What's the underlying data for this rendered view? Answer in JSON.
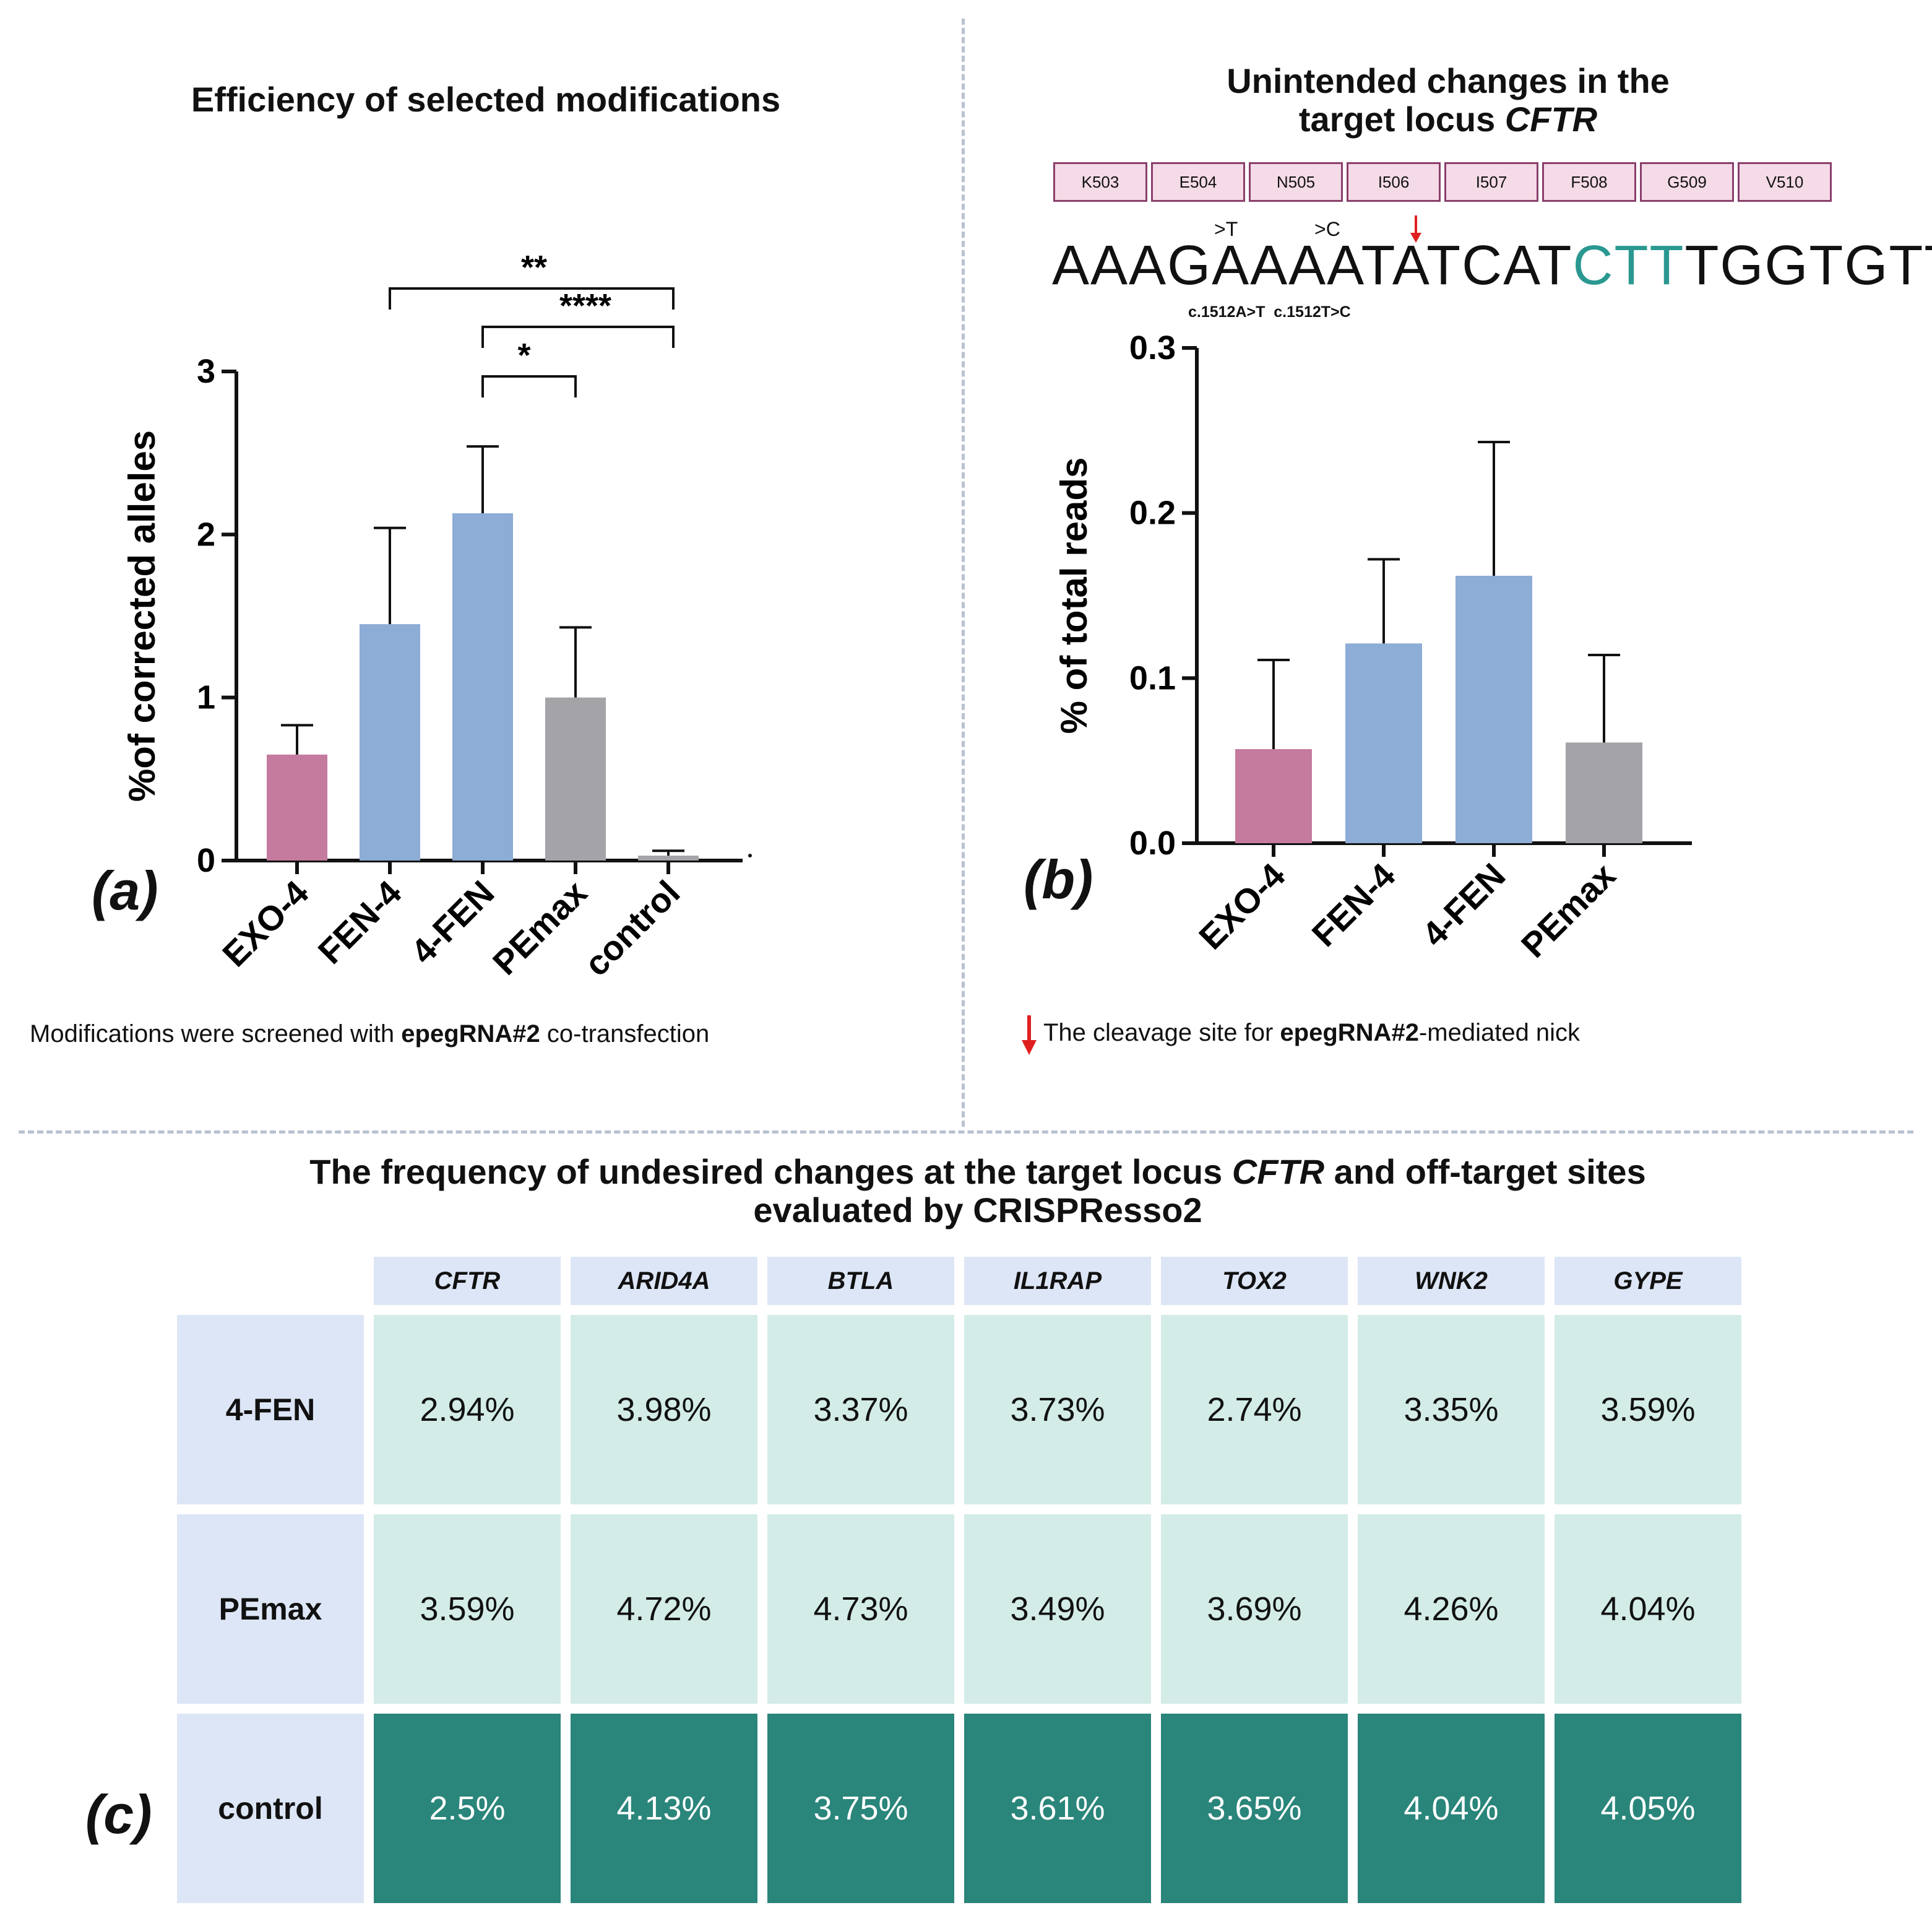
{
  "panel_a": {
    "label": "(a)",
    "title": "Efficiency of selected modifications",
    "caption_pre": "Modifications were screened with ",
    "caption_bold": "epegRNA#2",
    "caption_post": " co-transfection",
    "significance": [
      "**",
      "****",
      "*"
    ]
  },
  "panel_b": {
    "label": "(b)",
    "title_line1": "Unintended changes in the",
    "title_line2": "target locus ",
    "title_italic": "CFTR",
    "codons": [
      "K503",
      "E504",
      "N505",
      "I506",
      "I507",
      "F508",
      "G509",
      "V510"
    ],
    "seq_a": "AAAGAAAATATCAT",
    "seq_teal": "CTT",
    "seq_b": "TGGTGTT",
    "mut1": ">T",
    "mut2": ">C",
    "mut_labels": "c.1512A>T  c.1512T>C",
    "caption_pre": "The cleavage site for ",
    "caption_bold": "epegRNA#2",
    "caption_post": "-mediated nick"
  },
  "panel_c": {
    "label": "(c)",
    "title_pre": "The frequency of undesired changes at the target locus ",
    "title_italic": "CFTR",
    "title_post": " and off-target sites",
    "title_line2": "evaluated by CRISPResso2"
  },
  "colors": {
    "pink": "#c47b9e",
    "blue": "#8dacd6",
    "gray": "#a3a3a8",
    "teal": "#2a857a",
    "light_teal": "#d3ece7",
    "header": "#dde6f6"
  },
  "chart_data": [
    {
      "type": "bar",
      "title": "Efficiency of selected modifications",
      "categories": [
        "EXO-4",
        "FEN-4",
        "4-FEN",
        "PEmax",
        "control"
      ],
      "values": [
        0.65,
        1.45,
        2.13,
        1.0,
        0.03
      ],
      "errors": [
        0.18,
        0.59,
        0.41,
        0.43,
        0.03
      ],
      "colors": [
        "#c47b9e",
        "#8dacd6",
        "#8dacd6",
        "#a3a3a8",
        "#a3a3a8"
      ],
      "xlabel": "",
      "ylabel": "%of corrected alleles",
      "ylim": [
        0,
        3
      ],
      "yticks": [
        "0",
        "1",
        "2",
        "3"
      ],
      "significance": [
        {
          "from": "FEN-4",
          "to": "control",
          "label": "**"
        },
        {
          "from": "4-FEN",
          "to": "control",
          "label": "****"
        },
        {
          "from": "4-FEN",
          "to": "PEmax",
          "label": "*"
        }
      ]
    },
    {
      "type": "bar",
      "title": "Unintended changes in the target locus CFTR",
      "categories": [
        "EXO-4",
        "FEN-4",
        "4-FEN",
        "PEmax"
      ],
      "values": [
        0.057,
        0.121,
        0.162,
        0.061
      ],
      "errors": [
        0.054,
        0.051,
        0.081,
        0.053
      ],
      "colors": [
        "#c47b9e",
        "#8dacd6",
        "#8dacd6",
        "#a3a3a8"
      ],
      "xlabel": "",
      "ylabel": "% of total reads",
      "ylim": [
        0,
        0.3
      ],
      "yticks": [
        "0.0",
        "0.1",
        "0.2",
        "0.3"
      ]
    },
    {
      "type": "table",
      "columns": [
        "CFTR",
        "ARID4A",
        "BTLA",
        "IL1RAP",
        "TOX2",
        "WNK2",
        "GYPE"
      ],
      "rows": [
        {
          "name": "4-FEN",
          "values": [
            "2.94%",
            "3.98%",
            "3.37%",
            "3.73%",
            "2.74%",
            "3.35%",
            "3.59%"
          ]
        },
        {
          "name": "PEmax",
          "values": [
            "3.59%",
            "4.72%",
            "4.73%",
            "3.49%",
            "3.69%",
            "4.26%",
            "4.04%"
          ]
        },
        {
          "name": "control",
          "values": [
            "2.5%",
            "4.13%",
            "3.75%",
            "3.61%",
            "3.65%",
            "4.04%",
            "4.05%"
          ]
        }
      ]
    }
  ]
}
